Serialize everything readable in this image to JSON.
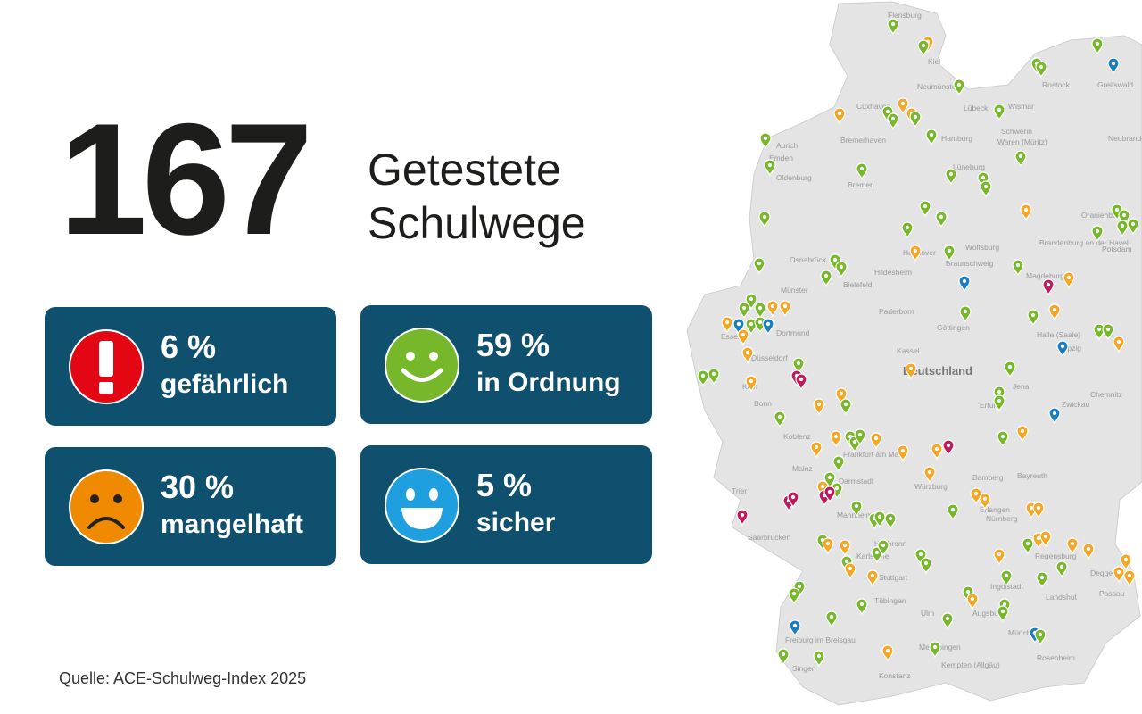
{
  "headline": {
    "number": "167",
    "line1": "Getestete",
    "line2": "Schulwege"
  },
  "cards": [
    {
      "percent": "6 %",
      "label": "gefährlich",
      "icon": "exclamation-icon",
      "color": "#e30613"
    },
    {
      "percent": "59 %",
      "label": "in Ordnung",
      "icon": "smiley-happy-icon",
      "color": "#76b82a"
    },
    {
      "percent": "30 %",
      "label": "mangelhaft",
      "icon": "smiley-sad-icon",
      "color": "#f08a00"
    },
    {
      "percent": "5 %",
      "label": "sicher",
      "icon": "smiley-laughing-icon",
      "color": "#1e9fe0"
    }
  ],
  "source": "Quelle: ACE-Schulweg-Index 2025",
  "map": {
    "country_label": "Deutschland",
    "marker_colors": {
      "green": "#76b82a",
      "orange": "#f5a623",
      "magenta": "#c0185c",
      "blue": "#1a7cc1"
    },
    "cities": [
      "Flensburg",
      "Kiel",
      "Rostock",
      "Neumünster",
      "Lübeck",
      "Wismar",
      "Greifswald",
      "Cuxhaven",
      "Hamburg",
      "Schwerin",
      "Waren (Müritz)",
      "Neubrandenburg",
      "Bremerhaven",
      "Aurich",
      "Emden",
      "Oldenburg",
      "Bremen",
      "Lüneburg",
      "Oranienburg",
      "Brandenburg an der Havel",
      "Potsdam",
      "Wolfsburg",
      "Hannover",
      "Braunschweig",
      "Osnabrück",
      "Hildesheim",
      "Magdeburg",
      "Münster",
      "Bielefeld",
      "Dortmund",
      "Paderborn",
      "Essen",
      "Göttingen",
      "Halle (Saale)",
      "Leipzig",
      "Düsseldorf",
      "Kassel",
      "Köln",
      "Bonn",
      "Erfurt",
      "Jena",
      "Chemnitz",
      "Zwickau",
      "Koblenz",
      "Frankfurt am Main",
      "Mainz",
      "Darmstadt",
      "Bamberg",
      "Bayreuth",
      "Würzburg",
      "Trier",
      "Erlangen",
      "Nürnberg",
      "Mannheim",
      "Saarbrücken",
      "Heilbronn",
      "Regensburg",
      "Karlsruhe",
      "Stuttgart",
      "Ingolstadt",
      "Deggendorf",
      "Landshut",
      "Passau",
      "Tübingen",
      "Ulm",
      "Augsburg",
      "Freiburg im Breisgau",
      "München",
      "Memmingen",
      "Kempten (Allgäu)",
      "Rosenheim",
      "Singen",
      "Konstanz"
    ]
  }
}
